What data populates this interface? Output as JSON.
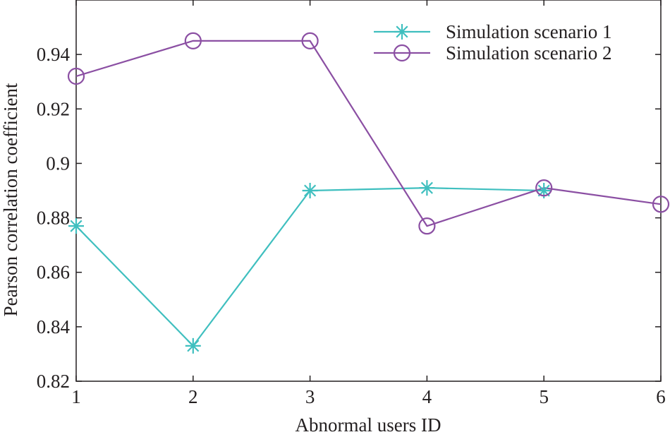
{
  "chart_data": {
    "type": "line",
    "title": "",
    "xlabel": "Abnormal users ID",
    "ylabel": "Pearson correlation coefficient",
    "xlim": [
      1,
      6
    ],
    "ylim": [
      0.82,
      0.96
    ],
    "xticks": [
      "1",
      "2",
      "3",
      "4",
      "5",
      "6"
    ],
    "yticks": [
      "0.82",
      "0.84",
      "0.86",
      "0.88",
      "0.9",
      "0.92",
      "0.94"
    ],
    "grid": false,
    "legend_position": "top-right",
    "x": [
      1,
      2,
      3,
      4,
      5,
      6
    ],
    "series": [
      {
        "name": "Simulation scenario 1",
        "color": "#3fbfbf",
        "marker": "asterisk",
        "x": [
          1,
          2,
          3,
          4,
          5
        ],
        "values": [
          0.877,
          0.833,
          0.89,
          0.891,
          0.89
        ]
      },
      {
        "name": "Simulation scenario 2",
        "color": "#8b4fa3",
        "marker": "circle",
        "x": [
          1,
          2,
          3,
          4,
          5,
          6
        ],
        "values": [
          0.932,
          0.945,
          0.945,
          0.877,
          0.891,
          0.885
        ]
      }
    ]
  }
}
